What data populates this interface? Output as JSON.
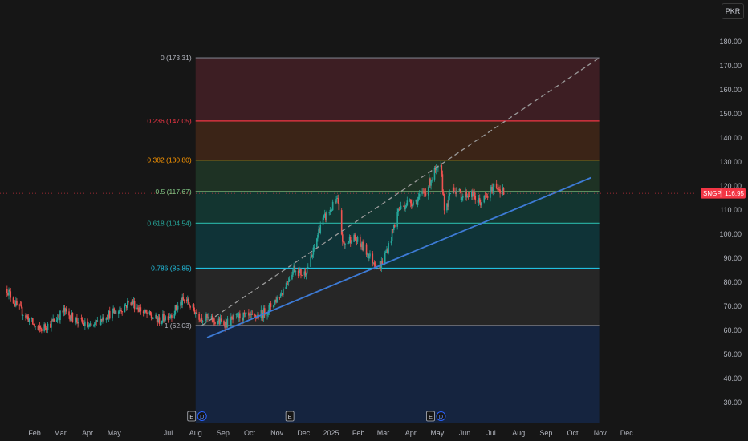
{
  "currency": "PKR",
  "colors": {
    "background": "#161616",
    "up": "#26a69a",
    "down": "#ef5350",
    "trendline": "#3d7bd6",
    "projection": "#9a9a9a",
    "last_price_badge": "#f23645"
  },
  "chart_data": {
    "type": "candlestick",
    "symbol": "SNGP",
    "last_price_label": "116.95",
    "last_price": 116.95,
    "y_axis": {
      "ticks": [
        "180.00",
        "170.00",
        "160.00",
        "150.00",
        "140.00",
        "130.00",
        "120.00",
        "110.00",
        "100.00",
        "90.00",
        "80.00",
        "70.00",
        "60.00",
        "50.00",
        "40.00",
        "30.00"
      ],
      "tick_values": [
        180,
        170,
        160,
        150,
        140,
        130,
        120,
        110,
        100,
        90,
        80,
        70,
        60,
        50,
        40,
        30
      ],
      "range": [
        27,
        187
      ],
      "position": "right"
    },
    "x_axis": {
      "ticks": [
        "Feb",
        "Mar",
        "Apr",
        "May",
        "Jul",
        "Aug",
        "Sep",
        "Oct",
        "Nov",
        "Dec",
        "2025",
        "Feb",
        "Mar",
        "Apr",
        "May",
        "Jun",
        "Jul",
        "Aug",
        "Sep",
        "Oct",
        "Nov",
        "Dec"
      ],
      "tick_dates": [
        "2024-02-01",
        "2024-03-01",
        "2024-04-01",
        "2024-05-01",
        "2024-07-01",
        "2024-08-01",
        "2024-09-01",
        "2024-10-01",
        "2024-11-01",
        "2024-12-01",
        "2025-01-01",
        "2025-02-01",
        "2025-03-01",
        "2025-04-01",
        "2025-05-01",
        "2025-06-01",
        "2025-07-01",
        "2025-08-01",
        "2025-09-01",
        "2025-10-01",
        "2025-11-01",
        "2025-12-01"
      ],
      "range": [
        "2024-01-01",
        "2025-12-31"
      ]
    },
    "fibonacci": {
      "start": "2024-08-01",
      "end": "2025-10-31",
      "levels": [
        {
          "label": "0 (173.31)",
          "ratio": 0,
          "price": 173.31,
          "line": "#787b86",
          "fill": "#3d1e23"
        },
        {
          "label": "0.236 (147.05)",
          "ratio": 0.236,
          "price": 147.05,
          "line": "#f23645",
          "fill": "#3b2417"
        },
        {
          "label": "0.382 (130.80)",
          "ratio": 0.382,
          "price": 130.8,
          "line": "#ff9800",
          "fill": "#1e3224"
        },
        {
          "label": "0.5 (117.67)",
          "ratio": 0.5,
          "price": 117.67,
          "line": "#81c784",
          "fill": "#133530"
        },
        {
          "label": "0.618 (104.54)",
          "ratio": 0.618,
          "price": 104.54,
          "line": "#26a69a",
          "fill": "#0f3337"
        },
        {
          "label": "0.786 (85.85)",
          "ratio": 0.786,
          "price": 85.85,
          "line": "#22c0e0",
          "fill": "#262626"
        },
        {
          "label": "1 (62.03)",
          "ratio": 1,
          "price": 62.03,
          "line": "#787b86",
          "fill": "#15243f"
        }
      ]
    },
    "trendline": {
      "from": [
        "2024-08-14",
        57
      ],
      "to": [
        "2025-10-22",
        123.5
      ]
    },
    "projection_line": {
      "from": [
        "2024-08-08",
        62
      ],
      "to": [
        "2025-10-31",
        173.31
      ]
    },
    "event_markers": [
      {
        "date": "2024-08-01",
        "labels": [
          "E",
          "D"
        ]
      },
      {
        "date": "2024-11-20",
        "labels": [
          "E"
        ]
      },
      {
        "date": "2025-04-28",
        "labels": [
          "E",
          "D"
        ]
      }
    ],
    "price_path": [
      [
        "2024-01-01",
        77
      ],
      [
        "2024-01-12",
        70
      ],
      [
        "2024-01-25",
        65
      ],
      [
        "2024-02-05",
        60
      ],
      [
        "2024-02-20",
        63
      ],
      [
        "2024-03-05",
        68
      ],
      [
        "2024-03-20",
        64
      ],
      [
        "2024-04-05",
        61
      ],
      [
        "2024-04-20",
        66
      ],
      [
        "2024-05-05",
        68
      ],
      [
        "2024-05-20",
        72
      ],
      [
        "2024-06-05",
        67
      ],
      [
        "2024-06-20",
        64
      ],
      [
        "2024-07-05",
        67
      ],
      [
        "2024-07-20",
        73
      ],
      [
        "2024-08-05",
        66
      ],
      [
        "2024-08-20",
        64
      ],
      [
        "2024-09-05",
        63
      ],
      [
        "2024-09-20",
        66
      ],
      [
        "2024-10-05",
        65
      ],
      [
        "2024-10-20",
        68
      ],
      [
        "2024-11-05",
        75
      ],
      [
        "2024-11-20",
        86
      ],
      [
        "2024-12-01",
        83
      ],
      [
        "2024-12-10",
        90
      ],
      [
        "2024-12-20",
        104
      ],
      [
        "2024-12-31",
        110
      ],
      [
        "2025-01-08",
        114
      ],
      [
        "2025-01-15",
        95
      ],
      [
        "2025-01-25",
        99
      ],
      [
        "2025-02-05",
        95
      ],
      [
        "2025-02-15",
        90
      ],
      [
        "2025-02-25",
        86
      ],
      [
        "2025-03-08",
        96
      ],
      [
        "2025-03-18",
        110
      ],
      [
        "2025-03-28",
        113
      ],
      [
        "2025-04-08",
        114
      ],
      [
        "2025-04-18",
        118
      ],
      [
        "2025-04-28",
        126
      ],
      [
        "2025-05-05",
        127
      ],
      [
        "2025-05-10",
        108
      ],
      [
        "2025-05-18",
        120
      ],
      [
        "2025-05-28",
        116
      ],
      [
        "2025-06-08",
        117
      ],
      [
        "2025-06-18",
        113
      ],
      [
        "2025-06-28",
        116
      ],
      [
        "2025-07-05",
        121
      ],
      [
        "2025-07-15",
        117
      ]
    ]
  }
}
